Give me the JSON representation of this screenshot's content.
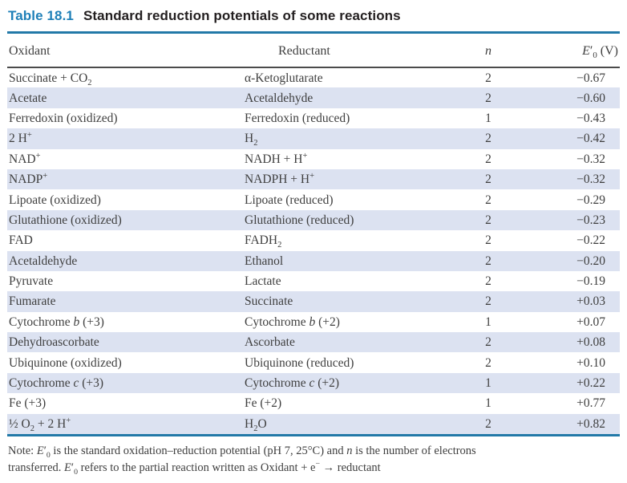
{
  "title": {
    "label": "Table 18.1",
    "text": "Standard reduction potentials of some reactions"
  },
  "table": {
    "columns": [
      {
        "key": "oxidant",
        "label": "Oxidant"
      },
      {
        "key": "reductant",
        "label": "Reductant"
      },
      {
        "key": "n",
        "label": "*n*"
      },
      {
        "key": "e0",
        "label": "*E*′~0~ (V)"
      }
    ],
    "rows": [
      [
        "Succinate + CO~2~",
        "α-Ketoglutarate",
        "2",
        "−0.67"
      ],
      [
        "Acetate",
        "Acetaldehyde",
        "2",
        "−0.60"
      ],
      [
        "Ferredoxin (oxidized)",
        "Ferredoxin (reduced)",
        "1",
        "−0.43"
      ],
      [
        "2 H^+^",
        "H~2~",
        "2",
        "−0.42"
      ],
      [
        "NAD^+^",
        "NADH + H^+^",
        "2",
        "−0.32"
      ],
      [
        "NADP^+^",
        "NADPH + H^+^",
        "2",
        "−0.32"
      ],
      [
        "Lipoate (oxidized)",
        "Lipoate (reduced)",
        "2",
        "−0.29"
      ],
      [
        "Glutathione (oxidized)",
        "Glutathione (reduced)",
        "2",
        "−0.23"
      ],
      [
        "FAD",
        "FADH~2~",
        "2",
        "−0.22"
      ],
      [
        "Acetaldehyde",
        "Ethanol",
        "2",
        "−0.20"
      ],
      [
        "Pyruvate",
        "Lactate",
        "2",
        "−0.19"
      ],
      [
        "Fumarate",
        "Succinate",
        "2",
        "+0.03"
      ],
      [
        "Cytochrome *b* (+3)",
        "Cytochrome *b* (+2)",
        "1",
        "+0.07"
      ],
      [
        "Dehydroascorbate",
        "Ascorbate",
        "2",
        "+0.08"
      ],
      [
        "Ubiquinone (oxidized)",
        "Ubiquinone (reduced)",
        "2",
        "+0.10"
      ],
      [
        "Cytochrome *c* (+3)",
        "Cytochrome *c* (+2)",
        "1",
        "+0.22"
      ],
      [
        "Fe (+3)",
        "Fe (+2)",
        "1",
        "+0.77"
      ],
      [
        "½ O~2~ + 2 H^+^",
        "H~2~O",
        "2",
        "+0.82"
      ]
    ]
  },
  "note": "Note: *E*′~0~ is the standard oxidation–reduction potential (pH 7, 25°C) and *n* is the number of electrons\ntransferred. *E*′~0~ refers to the partial reaction written as Oxidant + e^−^ → reductant",
  "colors": {
    "accent_blue": "#1f80b8",
    "rule_blue": "#2279a8",
    "row_shade": "#dce2f1",
    "text_dark": "#231f20",
    "text_body": "#3f3f3f"
  }
}
